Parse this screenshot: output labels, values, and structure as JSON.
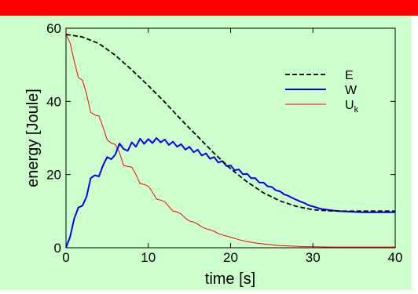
{
  "colors": {
    "header_bar": "#ff0000",
    "panel_background": "#ccffcc",
    "plot_background": "#ccffcc"
  },
  "chart_data": {
    "type": "line",
    "title": "",
    "xlabel": "time [s]",
    "ylabel": "energy [Joule]",
    "xlim": [
      0,
      40
    ],
    "ylim": [
      0,
      60
    ],
    "xticks": [
      0,
      10,
      20,
      30,
      40
    ],
    "yticks": [
      0,
      20,
      40,
      60
    ],
    "grid": false,
    "legend_position": "top-right",
    "legend": [
      {
        "label": "E",
        "sub": ""
      },
      {
        "label": "W",
        "sub": ""
      },
      {
        "label": "U",
        "sub": "k"
      }
    ],
    "series": [
      {
        "key": "E",
        "color": "#000000",
        "dash": "dashed",
        "x": [
          0,
          2,
          4,
          6,
          8,
          10,
          12,
          14,
          16,
          18,
          20,
          22,
          24,
          26,
          28,
          30,
          32,
          34,
          36,
          38,
          40
        ],
        "y": [
          58.3,
          57.6,
          55.8,
          52.6,
          48.6,
          44.3,
          39.8,
          35.0,
          30.4,
          25.8,
          21.6,
          18.0,
          15.0,
          12.8,
          11.3,
          10.4,
          10.1,
          10.0,
          10.0,
          10.0,
          10.0
        ]
      },
      {
        "key": "W",
        "color": "#0000ff",
        "dash": "solid",
        "x": [
          0,
          0.5,
          1,
          1.5,
          2,
          2.5,
          3,
          3.5,
          4,
          4.5,
          5,
          5.5,
          6,
          6.5,
          7,
          7.5,
          8,
          8.5,
          9,
          9.5,
          10,
          10.5,
          11,
          11.5,
          12,
          12.5,
          13,
          13.5,
          14,
          14.5,
          15,
          15.5,
          16,
          16.5,
          17,
          17.5,
          18,
          18.5,
          19,
          19.5,
          20,
          20.5,
          21,
          21.5,
          22,
          22.5,
          23,
          23.5,
          24,
          24.5,
          25,
          25.5,
          26,
          26.5,
          27,
          27.5,
          28,
          28.5,
          29,
          29.5,
          30,
          31,
          32,
          33,
          34,
          35,
          36,
          37,
          38,
          39,
          40
        ],
        "y": [
          0,
          3,
          8,
          11,
          11.5,
          14,
          19,
          19.8,
          19.5,
          22.5,
          24.8,
          24.2,
          25.5,
          28.5,
          27,
          26.5,
          28.8,
          27.6,
          29.8,
          28.4,
          29.7,
          28.6,
          30,
          28.8,
          29.6,
          28.1,
          29,
          27.6,
          28.3,
          26.8,
          27.6,
          26.1,
          26.8,
          25.2,
          25.8,
          24.3,
          24.8,
          23.3,
          23.7,
          22.3,
          22.5,
          21.2,
          21.4,
          20.1,
          20.2,
          19.0,
          19.0,
          17.8,
          17.8,
          16.8,
          16.6,
          15.7,
          15.4,
          14.6,
          14.2,
          13.6,
          13.1,
          12.6,
          12.2,
          11.6,
          11.3,
          10.6,
          10.3,
          10.0,
          9.9,
          9.8,
          9.7,
          9.7,
          9.7,
          9.7,
          9.7
        ]
      },
      {
        "key": "Uk",
        "color": "#ff0000",
        "dash": "solid",
        "x": [
          0,
          0.5,
          1,
          1.5,
          2,
          2.5,
          3,
          3.5,
          4,
          4.5,
          5,
          5.5,
          6,
          6.5,
          7,
          7.5,
          8,
          8.5,
          9,
          9.5,
          10,
          10.5,
          11,
          11.5,
          12,
          12.5,
          13,
          13.5,
          14,
          14.5,
          15,
          15.5,
          16,
          16.5,
          17,
          17.5,
          18,
          18.5,
          19,
          19.5,
          20,
          21,
          22,
          23,
          24,
          25,
          26,
          27,
          28,
          29,
          30,
          32,
          34,
          36,
          38,
          40
        ],
        "y": [
          58.3,
          56,
          51,
          46.5,
          45.8,
          42,
          37,
          36.3,
          36,
          33,
          29.5,
          28.6,
          28.2,
          26,
          22.5,
          22.2,
          22,
          20,
          17.5,
          17.3,
          16.8,
          15.2,
          13.3,
          13.0,
          12.6,
          11.3,
          10.0,
          9.8,
          9.2,
          8.1,
          7.3,
          7.0,
          6.5,
          5.7,
          5.2,
          4.9,
          4.5,
          3.9,
          3.5,
          3.2,
          2.9,
          2.2,
          1.7,
          1.3,
          1.0,
          0.8,
          0.6,
          0.5,
          0.4,
          0.3,
          0.3,
          0.2,
          0.2,
          0.2,
          0.2,
          0.2
        ]
      }
    ]
  }
}
